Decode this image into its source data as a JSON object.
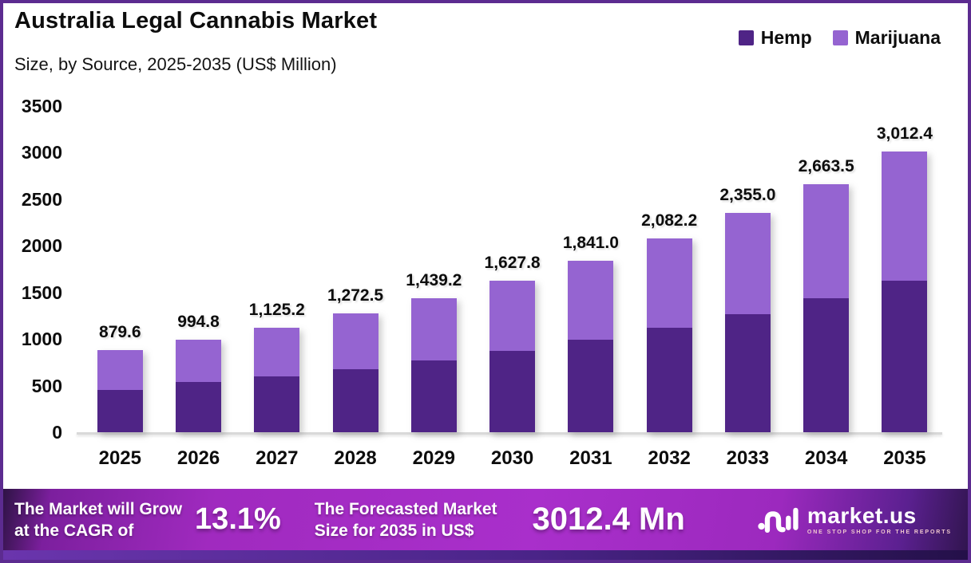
{
  "header": {
    "title": "Australia Legal Cannabis Market",
    "subtitle": "Size, by Source, 2025-2035 (US$ Million)"
  },
  "legend": {
    "items": [
      {
        "label": "Hemp",
        "color": "#4F2486"
      },
      {
        "label": "Marijuana",
        "color": "#9564D1"
      }
    ]
  },
  "chart_data": {
    "type": "bar",
    "stacked": true,
    "title": "Australia Legal Cannabis Market",
    "subtitle": "Size, by Source, 2025-2035 (US$ Million)",
    "categories": [
      "2025",
      "2026",
      "2027",
      "2028",
      "2029",
      "2030",
      "2031",
      "2032",
      "2033",
      "2034",
      "2035"
    ],
    "series": [
      {
        "name": "Hemp",
        "color": "#4F2486",
        "values": [
          455,
          535,
          600,
          672,
          767,
          873,
          992,
          1119,
          1266,
          1437,
          1629
        ]
      },
      {
        "name": "Marijuana",
        "color": "#9564D1",
        "values": [
          424.6,
          459.8,
          525.2,
          600.5,
          672.2,
          754.8,
          849.0,
          963.2,
          1089.0,
          1226.5,
          1383.4
        ]
      }
    ],
    "totals": [
      879.6,
      994.8,
      1125.2,
      1272.5,
      1439.2,
      1627.8,
      1841.0,
      2082.2,
      2355.0,
      2663.5,
      3012.4
    ],
    "total_labels": [
      "879.6",
      "994.8",
      "1,125.2",
      "1,272.5",
      "1,439.2",
      "1,627.8",
      "1,841.0",
      "2,082.2",
      "2,355.0",
      "2,663.5",
      "3,012.4"
    ],
    "ylim": [
      0,
      3500
    ],
    "yticks": [
      0,
      500,
      1000,
      1500,
      2000,
      2500,
      3000,
      3500
    ],
    "grid": false,
    "legend_position": "top-right"
  },
  "banner": {
    "cagr_label_line1": "The Market will Grow",
    "cagr_label_line2": "at the CAGR of",
    "cagr_value": "13.1%",
    "forecast_label_line1": "The Forecasted Market",
    "forecast_label_line2": "Size for 2035 in US$",
    "forecast_value": "3012.4 Mn",
    "logo_text": "market.us",
    "logo_tagline": "ONE STOP SHOP FOR THE REPORTS"
  },
  "colors": {
    "border": "#5C2B90",
    "hemp": "#4F2486",
    "marijuana": "#9564D1",
    "banner_bright": "#A92FCB",
    "banner_dark": "#31154F",
    "baseline": "#D9D9D9"
  }
}
